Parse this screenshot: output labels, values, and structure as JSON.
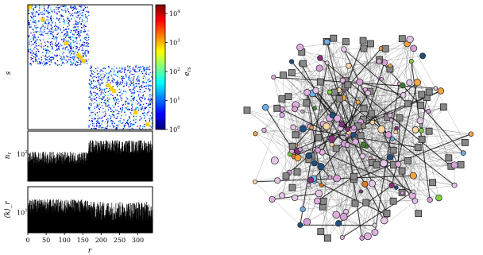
{
  "chart_data": [
    {
      "id": "matrix",
      "type": "heatmap",
      "ylabel": "s",
      "xlabel": "",
      "xlim": [
        0,
        340
      ],
      "ylim": [
        0,
        340
      ],
      "colorbar": {
        "label": "e_rs",
        "scale": "log",
        "range": [
          1,
          20000
        ],
        "ticks": [
          {
            "value": 1,
            "base": "10",
            "exp": "0"
          },
          {
            "value": 10,
            "base": "10",
            "exp": "1"
          },
          {
            "value": 100,
            "base": "10",
            "exp": "2"
          },
          {
            "value": 1000,
            "base": "10",
            "exp": "3"
          },
          {
            "value": 10000,
            "base": "10",
            "exp": "4"
          }
        ],
        "colormap": [
          "#00007f",
          "#0000ff",
          "#0080ff",
          "#00ffff",
          "#80ff80",
          "#ffff00",
          "#ff8000",
          "#ff0000",
          "#7f0000"
        ]
      },
      "blocks": [
        {
          "from": 0,
          "to": 165
        },
        {
          "from": 165,
          "to": 340
        }
      ],
      "grid": false
    },
    {
      "id": "n-r",
      "type": "bar",
      "ylabel": "n_r",
      "yscale": "log",
      "xlim": [
        0,
        340
      ],
      "ylim": [
        20,
        400
      ],
      "yticks": [
        {
          "value": 100,
          "base": "10",
          "exp": "2"
        }
      ],
      "segments": [
        {
          "x_start": 0,
          "x_end": 165,
          "typical": 75,
          "min": 45,
          "max": 115
        },
        {
          "x_start": 165,
          "x_end": 340,
          "typical": 150,
          "min": 85,
          "max": 230
        }
      ],
      "color": "#000000"
    },
    {
      "id": "k-r",
      "type": "bar",
      "ylabel": "⟨k⟩_r",
      "yscale": "log",
      "xlabel": "r",
      "xlim": [
        0,
        340
      ],
      "ylim": [
        2,
        80
      ],
      "yticks": [
        {
          "value": 10,
          "base": "10",
          "exp": "1"
        }
      ],
      "xticks": [
        0,
        50,
        100,
        150,
        200,
        250,
        300
      ],
      "segments": [
        {
          "x_start": 0,
          "x_end": 165,
          "typical": 14,
          "min": 8,
          "max": 30
        },
        {
          "x_start": 165,
          "x_end": 340,
          "typical": 8,
          "min": 4,
          "max": 25
        }
      ],
      "color": "#000000"
    },
    {
      "id": "network",
      "type": "scatter",
      "description_kind": "network",
      "node_kinds": [
        "circle",
        "square"
      ],
      "square_color": "#888888",
      "edge_color": "#555555",
      "circle_colors": [
        "#e6c6e6",
        "#e0b0e0",
        "#d8a0d8",
        "#f2a541",
        "#e07b1f",
        "#7fcf3f",
        "#3d7f2f",
        "#6cb0e8",
        "#1f4f7f",
        "#8a2f7f",
        "#ffd8a0"
      ]
    }
  ]
}
